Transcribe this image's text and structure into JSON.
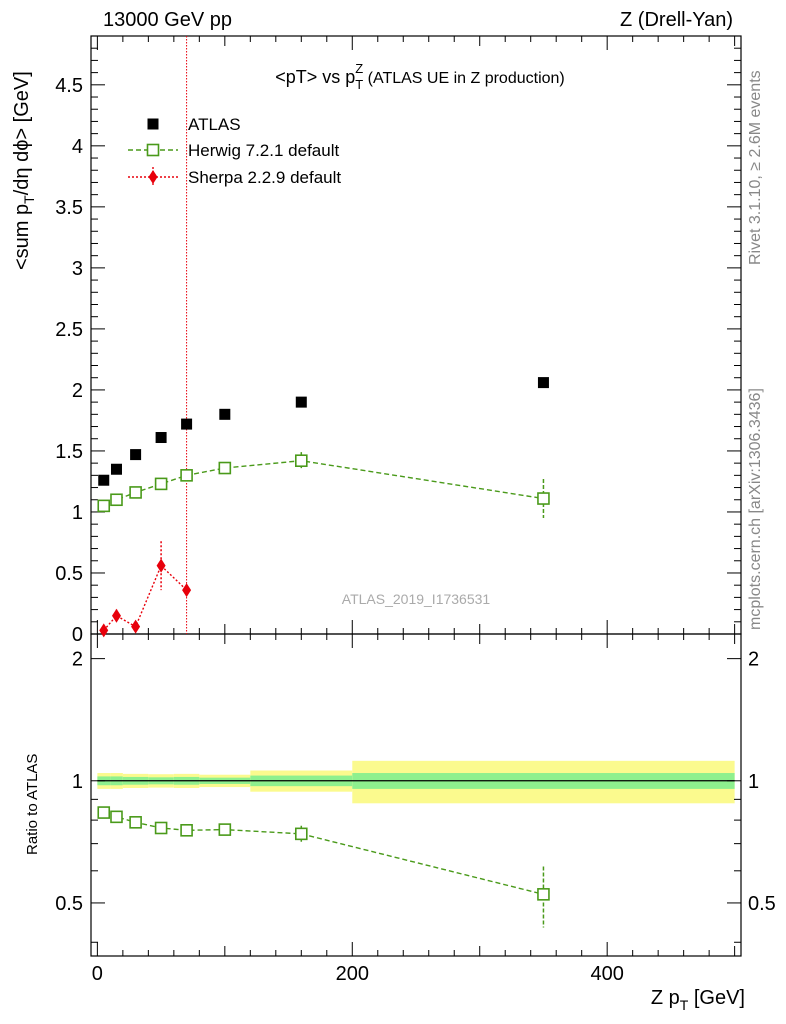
{
  "header": {
    "left": "13000 GeV pp",
    "right": "Z (Drell-Yan)"
  },
  "side_labels": {
    "rivet": "Rivet 3.1.10, ≥ 2.6M events",
    "mcplots": "mcplots.cern.ch [arXiv:1306.3436]"
  },
  "watermark": "ATLAS_2019_I1736531",
  "chart_data": [
    {
      "type": "scatter",
      "panel": "main",
      "title": {
        "prefix": "<pT> vs p",
        "sup": "Z",
        "sub": "T",
        "suffix": " (ATLAS UE in Z production)"
      },
      "ylabel": {
        "part1": "<sum p",
        "sub": "T",
        "part2": "/dη dϕ> [GeV]"
      },
      "xlim": [
        -5,
        505
      ],
      "ylim": [
        0,
        4.9
      ],
      "y_ticks": [
        0,
        0.5,
        1,
        1.5,
        2,
        2.5,
        3,
        3.5,
        4,
        4.5
      ],
      "y_tick_labels": [
        "0",
        "0.5",
        "1",
        "1.5",
        "2",
        "2.5",
        "3",
        "3.5",
        "4",
        "4.5"
      ],
      "legend": {
        "placement": "top-left",
        "entries": [
          "ATLAS",
          "Herwig 7.2.1 default",
          "Sherpa 2.2.9 default"
        ]
      },
      "series": [
        {
          "name": "ATLAS",
          "color": "#000000",
          "marker": "filled-square",
          "x": [
            5,
            15,
            30,
            50,
            70,
            100,
            160,
            350
          ],
          "y": [
            1.26,
            1.35,
            1.47,
            1.61,
            1.72,
            1.8,
            1.9,
            2.06
          ]
        },
        {
          "name": "Herwig 7.2.1 default",
          "color": "#4a9a1a",
          "marker": "open-square",
          "line": "dashed",
          "x": [
            5,
            15,
            30,
            50,
            70,
            100,
            160,
            350
          ],
          "y": [
            1.05,
            1.1,
            1.16,
            1.23,
            1.3,
            1.36,
            1.42,
            1.11
          ],
          "yerr": [
            0.02,
            0.02,
            0.02,
            0.02,
            0.02,
            0.02,
            0.07,
            0.16
          ]
        },
        {
          "name": "Sherpa 2.2.9 default",
          "color": "#e8000b",
          "marker": "filled-diamond",
          "line": "dotted",
          "x": [
            5,
            15,
            30,
            50,
            70
          ],
          "y": [
            0.03,
            0.15,
            0.06,
            0.56,
            0.36
          ],
          "yerr": [
            0.02,
            0.05,
            0.02,
            0.2,
            0.03
          ]
        }
      ],
      "vertical_line": {
        "x": 70,
        "color": "#e8000b"
      }
    },
    {
      "type": "scatter",
      "panel": "ratio",
      "ylabel": "Ratio to ATLAS",
      "xlabel": {
        "part1": "Z p",
        "sub": "T",
        "part2": " [GeV]"
      },
      "xlim": [
        -5,
        505
      ],
      "ylim": [
        0.37,
        2.3
      ],
      "x_ticks": [
        0,
        200,
        400
      ],
      "x_tick_labels": [
        "0",
        "200",
        "400"
      ],
      "y_ticks": [
        0.5,
        1,
        2
      ],
      "y_tick_labels": [
        "0.5",
        "1",
        "2"
      ],
      "bands": {
        "bins": [
          [
            0,
            10
          ],
          [
            10,
            20
          ],
          [
            20,
            40
          ],
          [
            40,
            60
          ],
          [
            60,
            80
          ],
          [
            80,
            120
          ],
          [
            120,
            200
          ],
          [
            200,
            500
          ]
        ],
        "stat_half_width": [
          0.025,
          0.025,
          0.022,
          0.02,
          0.022,
          0.018,
          0.03,
          0.045
        ],
        "total_half_width": [
          0.045,
          0.045,
          0.04,
          0.038,
          0.04,
          0.035,
          0.06,
          0.12
        ],
        "stat_color": "#8ef08e",
        "total_color": "#fbfa8e"
      },
      "series": [
        {
          "name": "Herwig 7.2.1 default",
          "color": "#4a9a1a",
          "x": [
            5,
            15,
            30,
            50,
            70,
            100,
            160,
            350
          ],
          "y": [
            0.835,
            0.815,
            0.79,
            0.765,
            0.755,
            0.758,
            0.74,
            0.525
          ],
          "yerr": [
            0.01,
            0.01,
            0.01,
            0.01,
            0.01,
            0.01,
            0.035,
            0.09
          ]
        }
      ]
    }
  ]
}
